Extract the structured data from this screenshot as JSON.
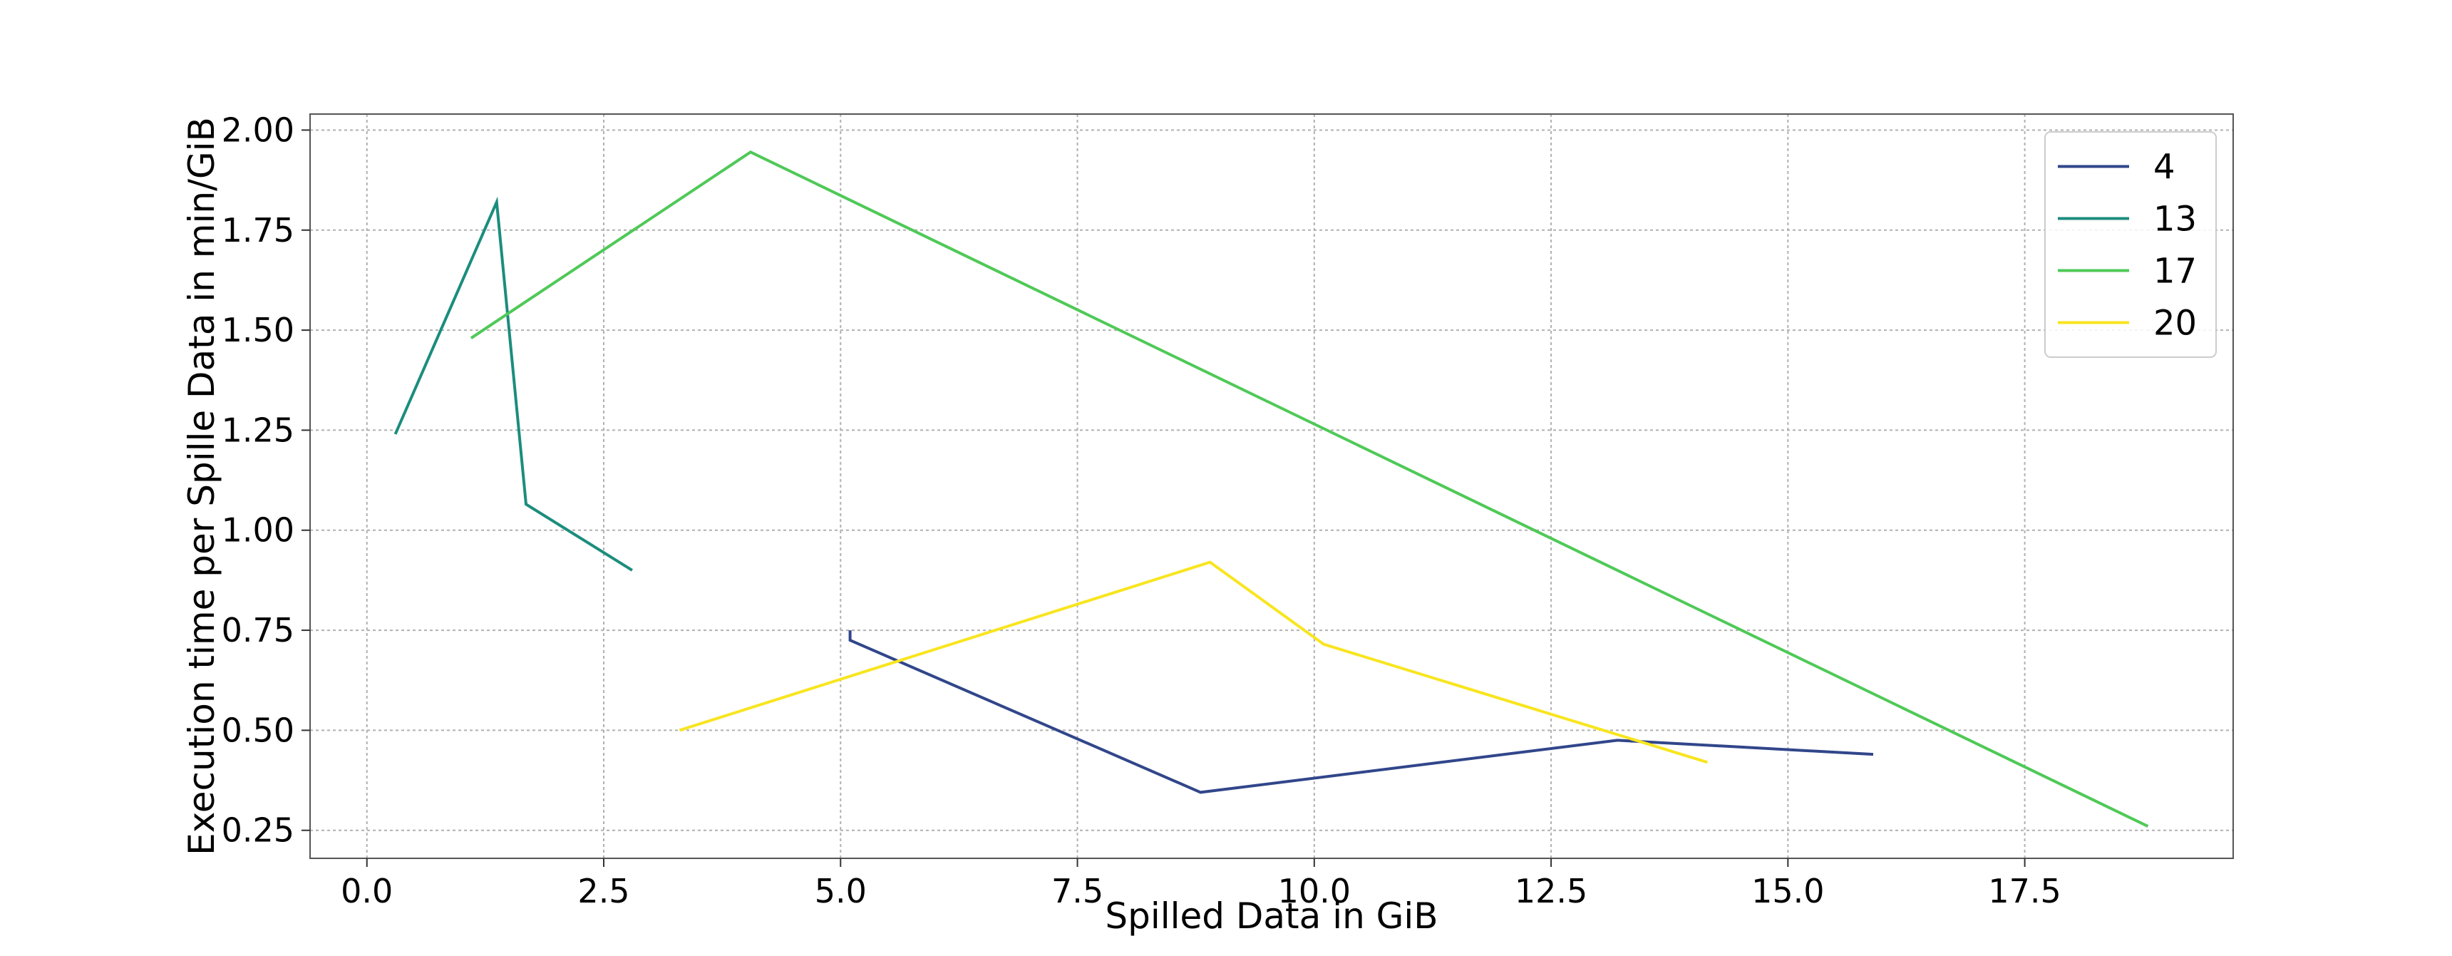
{
  "chart_data": {
    "type": "line",
    "title": "",
    "xlabel": "Spilled Data in GiB",
    "ylabel": "Execution time per Spille Data in min/GiB",
    "xlim": [
      -0.6,
      19.7
    ],
    "ylim": [
      0.18,
      2.04
    ],
    "xticks": [
      0.0,
      2.5,
      5.0,
      7.5,
      10.0,
      12.5,
      15.0,
      17.5
    ],
    "xtick_labels": [
      "0.0",
      "2.5",
      "5.0",
      "7.5",
      "10.0",
      "12.5",
      "15.0",
      "17.5"
    ],
    "yticks": [
      0.25,
      0.5,
      0.75,
      1.0,
      1.25,
      1.5,
      1.75,
      2.0
    ],
    "ytick_labels": [
      "0.25",
      "0.50",
      "0.75",
      "1.00",
      "1.25",
      "1.50",
      "1.75",
      "2.00"
    ],
    "grid": true,
    "legend_position": "top-right",
    "series": [
      {
        "name": "4",
        "color": "#31468a",
        "x": [
          5.1,
          5.1,
          8.8,
          13.2,
          15.9
        ],
        "y": [
          0.75,
          0.725,
          0.345,
          0.475,
          0.44
        ]
      },
      {
        "name": "13",
        "color": "#1b8d7d",
        "x": [
          0.3,
          1.37,
          1.68,
          2.8
        ],
        "y": [
          1.24,
          1.82,
          1.065,
          0.9
        ]
      },
      {
        "name": "17",
        "color": "#4fc957",
        "x": [
          1.1,
          4.05,
          18.8
        ],
        "y": [
          1.48,
          1.945,
          0.26
        ]
      },
      {
        "name": "20",
        "color": "#f8e51f",
        "x": [
          3.3,
          8.9,
          10.1,
          14.15
        ],
        "y": [
          0.5,
          0.92,
          0.715,
          0.42
        ]
      }
    ]
  }
}
